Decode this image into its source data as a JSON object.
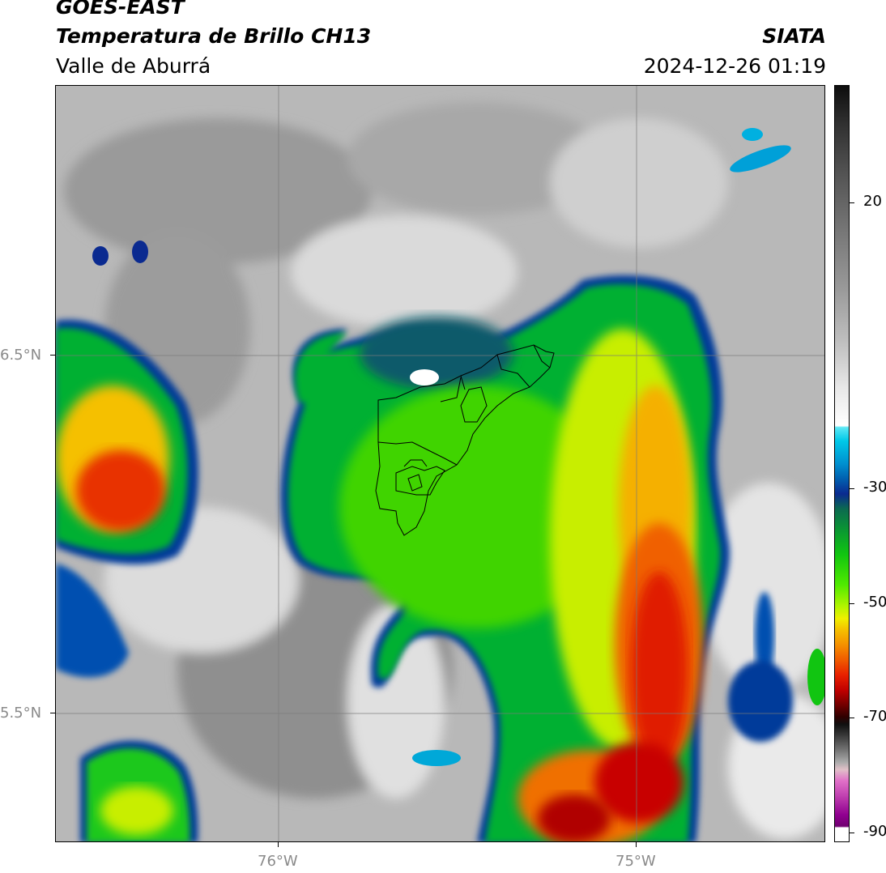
{
  "header": {
    "satellite": "GOES-EAST",
    "product": "Temperatura de Brillo CH13",
    "region": "Valle de Aburrá",
    "agency": "SIATA",
    "timestamp": "2024-12-26 01:19"
  },
  "map": {
    "lat_labels": [
      "6.5°N",
      "5.5°N"
    ],
    "lon_labels": [
      "76°W",
      "75°W"
    ]
  },
  "colorbar": {
    "labels": [
      "20",
      "-30",
      "-50",
      "-70",
      "-90"
    ],
    "colors": {
      "warm_max": "#0d0d0d",
      "gray": "#9a9a9a",
      "white": "#ffffff",
      "cyan": "#00c8e8",
      "blue": "#0a2a90",
      "green": "#11c511",
      "lime": "#4fea00",
      "yellow": "#f0f000",
      "orange": "#f59000",
      "red": "#e82000",
      "dark_red": "#700000",
      "magenta": "#c040b0",
      "purple": "#700070"
    }
  }
}
